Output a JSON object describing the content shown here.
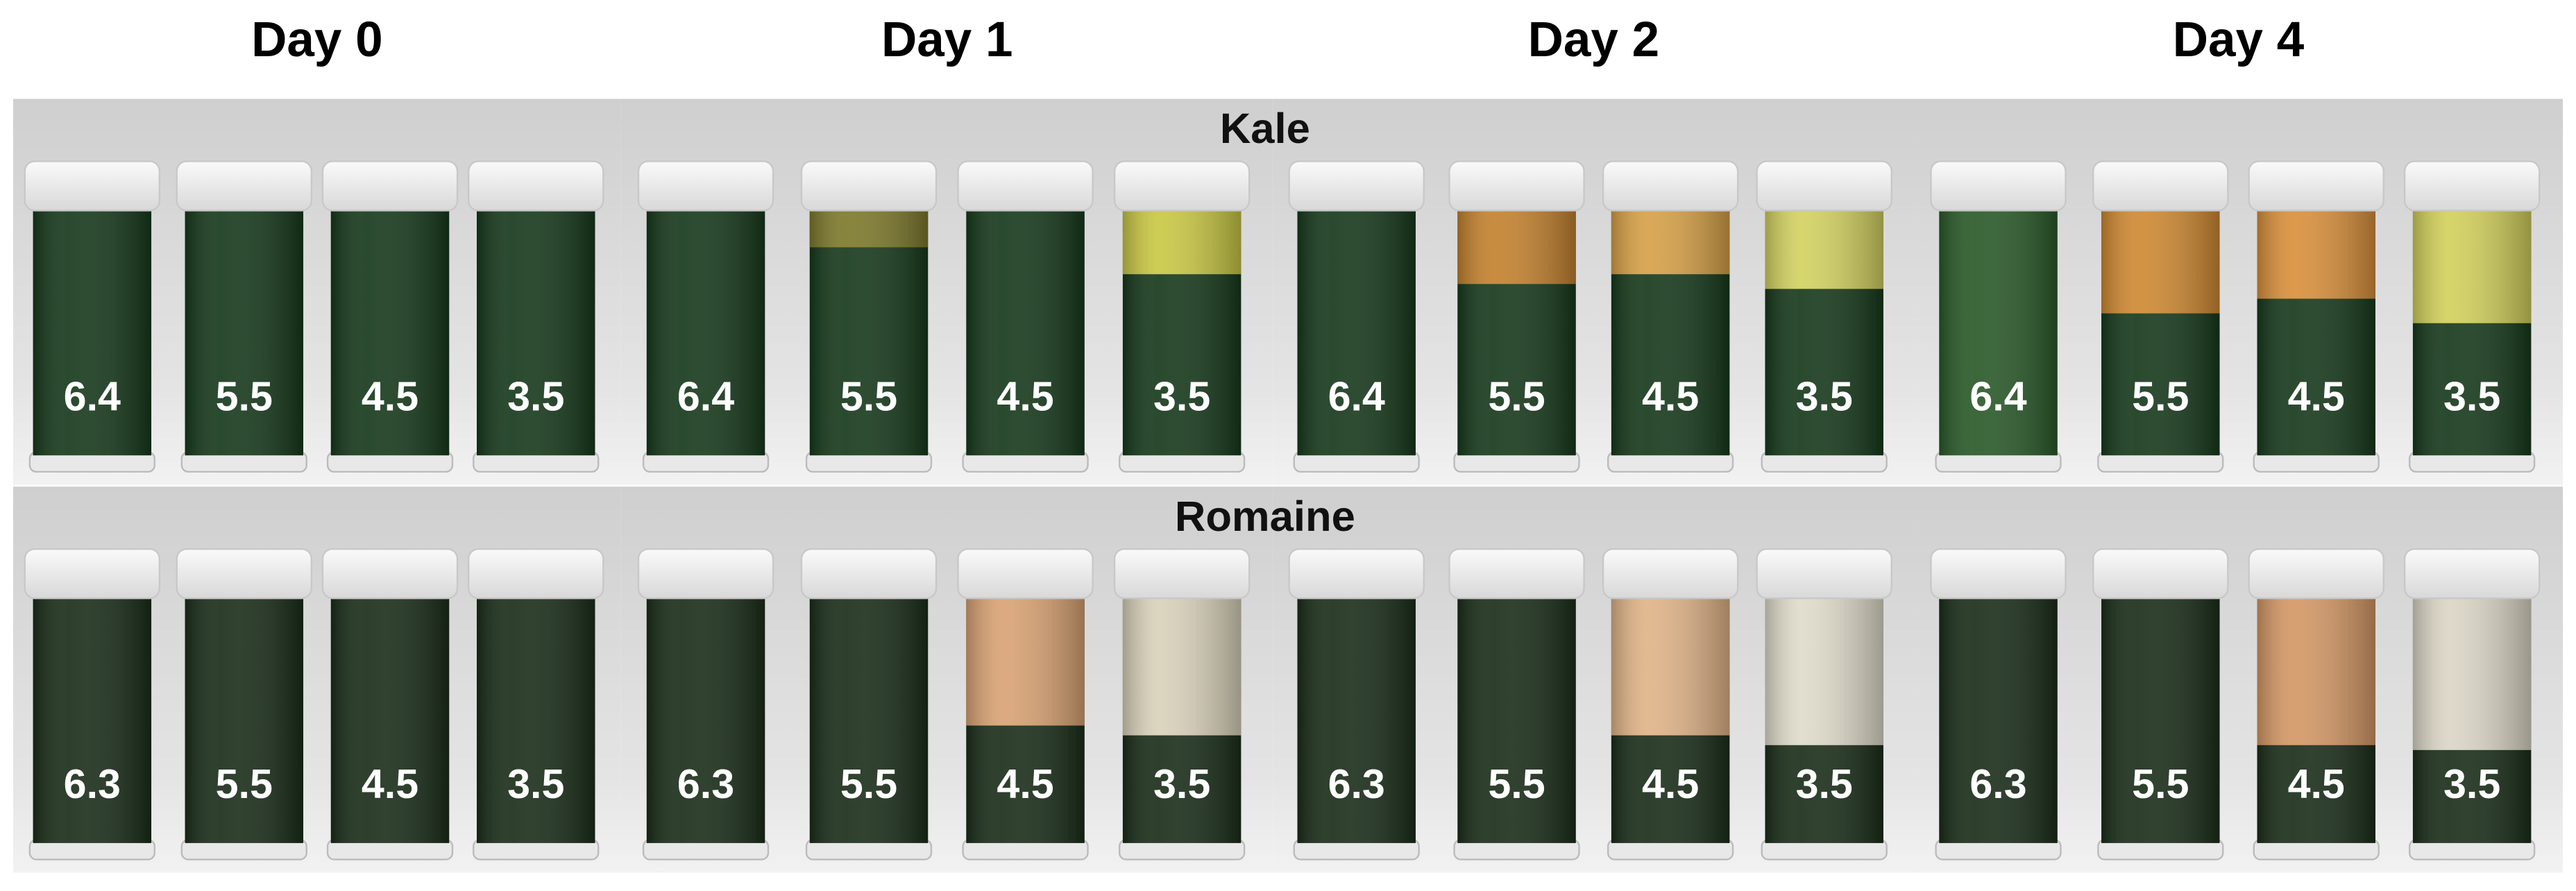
{
  "columns": [
    "Day 0",
    "Day 1",
    "Day 2",
    "Day 4"
  ],
  "rows": [
    {
      "label": "Kale",
      "panels": [
        [
          "6.4",
          "5.5",
          "4.5",
          "3.5"
        ],
        [
          "6.4",
          "5.5",
          "4.5",
          "3.5"
        ],
        [
          "6.4",
          "5.5",
          "4.5",
          "3.5"
        ],
        [
          "6.4",
          "5.5",
          "4.5",
          "3.5"
        ]
      ]
    },
    {
      "label": "Romaine",
      "panels": [
        [
          "6.3",
          "5.5",
          "4.5",
          "3.5"
        ],
        [
          "6.3",
          "5.5",
          "4.5",
          "3.5"
        ],
        [
          "6.3",
          "5.5",
          "4.5",
          "3.5"
        ],
        [
          "6.3",
          "5.5",
          "4.5",
          "3.5"
        ]
      ]
    }
  ]
}
